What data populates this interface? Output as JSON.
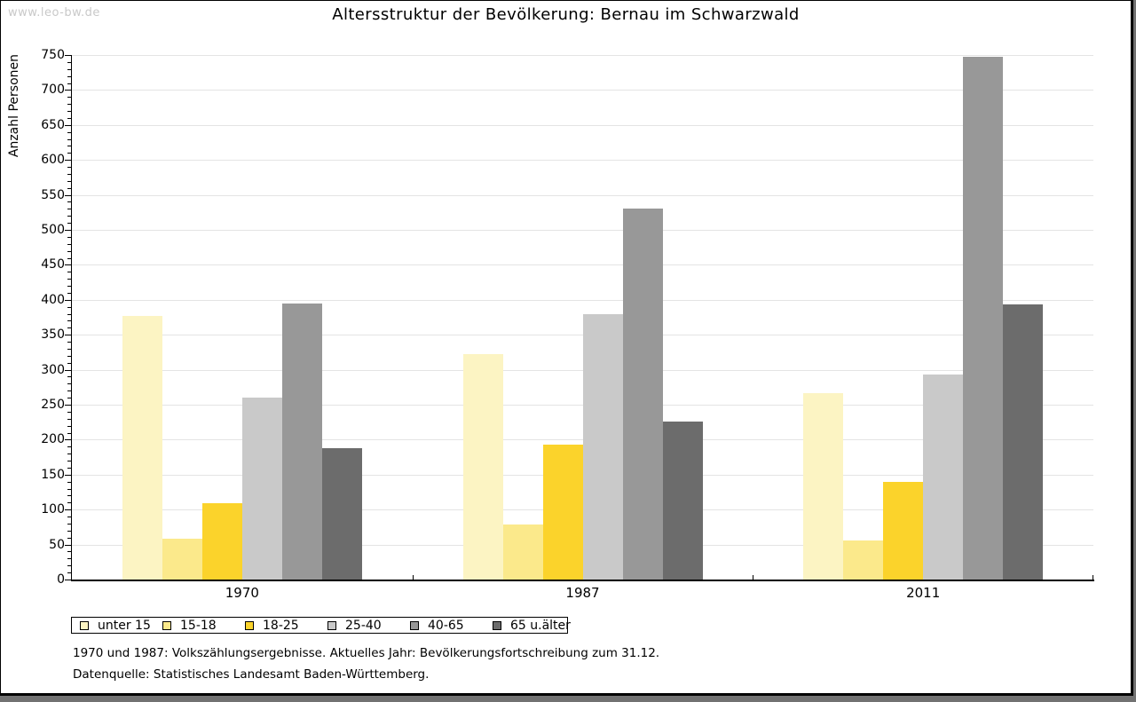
{
  "watermark": "www.leo-bw.de",
  "chart_data": {
    "type": "bar",
    "title": "Altersstruktur der Bevölkerung: Bernau im Schwarzwald",
    "ylabel": "Anzahl Personen",
    "xlabel": "",
    "ylim": [
      0,
      750
    ],
    "ytick_major": 50,
    "ytick_minor": 10,
    "grid": true,
    "gridline_color": "#e4e4e4",
    "legend_position": "bottom",
    "categories": [
      "1970",
      "1987",
      "2011"
    ],
    "series": [
      {
        "name": "unter 15",
        "color": "#fcf4c3",
        "values": [
          377,
          322,
          266
        ]
      },
      {
        "name": "15-18",
        "color": "#fbe98b",
        "values": [
          59,
          79,
          56
        ]
      },
      {
        "name": "18-25",
        "color": "#fbd32b",
        "values": [
          109,
          193,
          139
        ]
      },
      {
        "name": "25-40",
        "color": "#c9c9c9",
        "values": [
          260,
          380,
          293
        ]
      },
      {
        "name": "40-65",
        "color": "#989898",
        "values": [
          395,
          531,
          748
        ]
      },
      {
        "name": "65 u.älter",
        "color": "#6c6c6c",
        "values": [
          188,
          226,
          394
        ]
      }
    ],
    "footnotes": [
      "1970 und 1987: Volkszählungsergebnisse. Aktuelles Jahr: Bevölkerungsfortschreibung zum 31.12.",
      "Datenquelle: Statistisches Landesamt Baden-Württemberg."
    ]
  }
}
